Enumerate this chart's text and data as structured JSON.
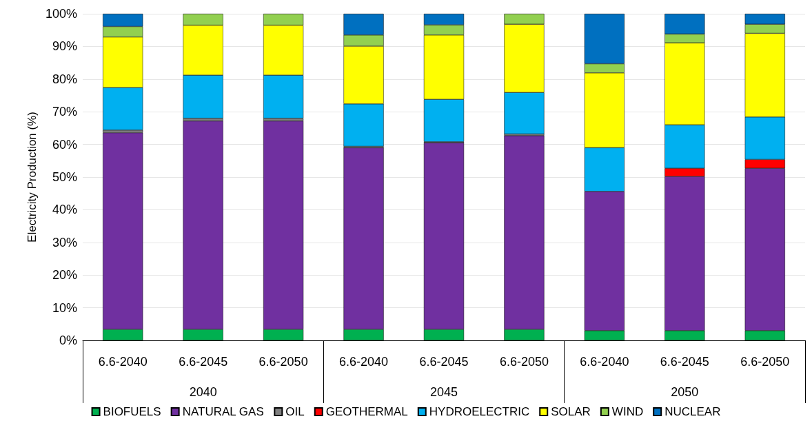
{
  "chart_data": {
    "type": "bar",
    "stacked": true,
    "ylabel": "Electricity Production (%)",
    "categories": [
      "6.6-2040",
      "6.6-2045",
      "6.6-2050",
      "6.6-2040",
      "6.6-2045",
      "6.6-2050",
      "6.6-2040",
      "6.6-2045",
      "6.6-2050"
    ],
    "annotations": [
      "2040",
      "2045",
      "2050"
    ],
    "series": [
      {
        "name": "BIOFUELS",
        "color": "#00b050",
        "values": [
          3.4,
          3.4,
          3.4,
          3.4,
          3.4,
          3.4,
          3.0,
          3.0,
          3.0
        ]
      },
      {
        "name": "NATURAL GAS",
        "color": "#7030a0",
        "values": [
          60.2,
          63.8,
          63.8,
          55.6,
          57.1,
          59.3,
          42.6,
          47.2,
          49.7
        ]
      },
      {
        "name": "OIL",
        "color": "#808080",
        "values": [
          0.8,
          0.8,
          0.8,
          0.4,
          0.3,
          0.5,
          null,
          null,
          null
        ]
      },
      {
        "name": "GEOTHERMAL",
        "color": "#ff0000",
        "values": [
          null,
          null,
          null,
          null,
          null,
          null,
          null,
          2.5,
          2.7
        ]
      },
      {
        "name": "HYDROELECTRIC",
        "color": "#00b0f0",
        "values": [
          13.0,
          13.2,
          13.2,
          13.0,
          13.0,
          12.7,
          13.4,
          13.3,
          13.0
        ]
      },
      {
        "name": "SOLAR",
        "color": "#ffff00",
        "values": [
          15.5,
          15.3,
          15.3,
          17.7,
          19.7,
          20.9,
          22.9,
          25.1,
          25.6
        ]
      },
      {
        "name": "WIND",
        "color": "#92d050",
        "values": [
          3.2,
          3.5,
          3.5,
          3.4,
          3.1,
          3.2,
          2.8,
          2.7,
          2.8
        ]
      },
      {
        "name": "NUCLEAR",
        "color": "#0070c0",
        "values": [
          3.9,
          null,
          null,
          6.5,
          3.4,
          null,
          15.3,
          6.2,
          3.2
        ]
      }
    ],
    "ylim": [
      0,
      100
    ],
    "yticks": [
      {
        "value": 0,
        "label": "0%"
      },
      {
        "value": 10,
        "label": "10%"
      },
      {
        "value": 20,
        "label": "20%"
      },
      {
        "value": 30,
        "label": "30%"
      },
      {
        "value": 40,
        "label": "40%"
      },
      {
        "value": 50,
        "label": "50%"
      },
      {
        "value": 60,
        "label": "60%"
      },
      {
        "value": 70,
        "label": "70%"
      },
      {
        "value": 80,
        "label": "80%"
      },
      {
        "value": 90,
        "label": "90%"
      },
      {
        "value": 100,
        "label": "100%"
      }
    ],
    "grid": "y",
    "legend": "bottom"
  }
}
